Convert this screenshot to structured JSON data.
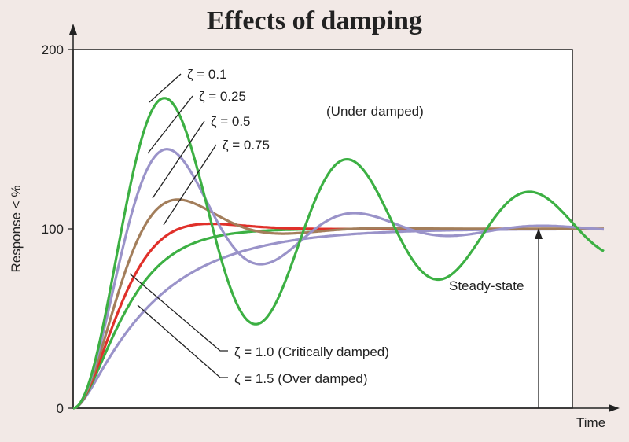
{
  "chart_data": {
    "type": "line",
    "title": "Effects of damping",
    "xlabel": "Time",
    "ylabel": "Response < %",
    "ylim": [
      0,
      200
    ],
    "yticks": [
      0,
      100,
      200
    ],
    "grid": false,
    "annotations": {
      "under_damped": "(Under damped)",
      "steady_state": "Steady-state"
    },
    "series": [
      {
        "name": "ζ = 0.1",
        "zeta": 0.1,
        "color": "#3cb043"
      },
      {
        "name": "ζ = 0.25",
        "zeta": 0.25,
        "color": "#9a93c9"
      },
      {
        "name": "ζ = 0.5",
        "zeta": 0.5,
        "color": "#a37e5b"
      },
      {
        "name": "ζ = 0.75",
        "zeta": 0.75,
        "color": "#e0302a"
      },
      {
        "name": "ζ = 1.0 (Critically damped)",
        "zeta": 1.0,
        "color": "#3cb043"
      },
      {
        "name": "ζ = 1.5 (Over damped)",
        "zeta": 1.5,
        "color": "#9a93c9"
      }
    ]
  }
}
